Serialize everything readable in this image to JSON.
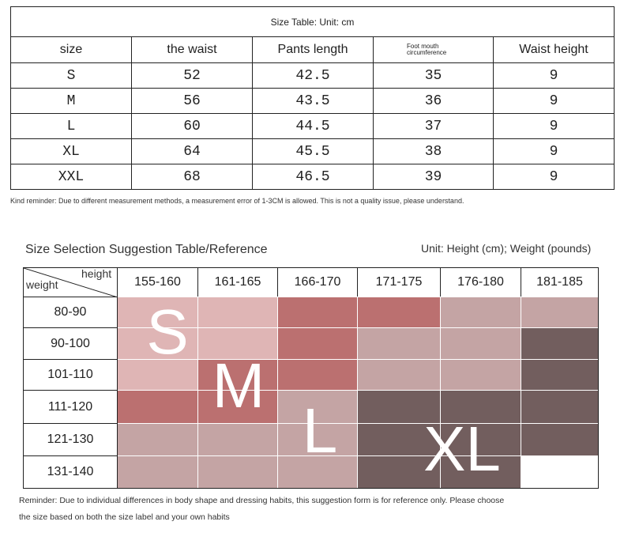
{
  "size_table": {
    "title": "Size Table: Unit: cm",
    "headers": [
      "size",
      "the waist",
      "Pants length",
      "Foot mouth circumference",
      "Waist height"
    ],
    "rows": [
      [
        "S",
        "52",
        "42.5",
        "35",
        "9"
      ],
      [
        "M",
        "56",
        "43.5",
        "36",
        "9"
      ],
      [
        "L",
        "60",
        "44.5",
        "37",
        "9"
      ],
      [
        "XL",
        "64",
        "45.5",
        "38",
        "9"
      ],
      [
        "XXL",
        "68",
        "46.5",
        "39",
        "9"
      ]
    ]
  },
  "reminder_1": "Kind reminder: Due to different measurement methods, a measurement error of 1-3CM is allowed. This is not a quality issue, please understand.",
  "suggestion_table": {
    "title": "Size Selection Suggestion Table/Reference",
    "unit_note": "Unit: Height (cm); Weight (pounds)",
    "corner_height": "height",
    "corner_weight": "weight",
    "height_ranges": [
      "155-160",
      "161-165",
      "166-170",
      "171-175",
      "176-180",
      "181-185"
    ],
    "weight_ranges": [
      "80-90",
      "90-100",
      "101-110",
      "111-120",
      "121-130",
      "131-140"
    ],
    "cell_colors": [
      [
        "#dfb5b5",
        "#dfb5b5",
        "#bb7070",
        "#bb7070",
        "#c4a4a4",
        "#c4a4a4"
      ],
      [
        "#dfb5b5",
        "#dfb5b5",
        "#bb7070",
        "#c4a4a4",
        "#c4a4a4",
        "#725e5e"
      ],
      [
        "#dfb5b5",
        "#bb7070",
        "#bb7070",
        "#c4a4a4",
        "#c4a4a4",
        "#725e5e"
      ],
      [
        "#bb7070",
        "#bb7070",
        "#c4a4a4",
        "#725e5e",
        "#725e5e",
        "#725e5e"
      ],
      [
        "#c4a4a4",
        "#c4a4a4",
        "#c4a4a4",
        "#725e5e",
        "#725e5e",
        "#725e5e"
      ],
      [
        "#c4a4a4",
        "#c4a4a4",
        "#c4a4a4",
        "#725e5e",
        "#725e5e",
        "#ffffff"
      ]
    ],
    "size_labels": [
      "S",
      "M",
      "L",
      "XL"
    ]
  },
  "reminder_2": [
    "Reminder: Due to individual differences in body shape and dressing habits, this suggestion form is for reference only. Please choose",
    "the size based on both the size label and your own habits"
  ]
}
